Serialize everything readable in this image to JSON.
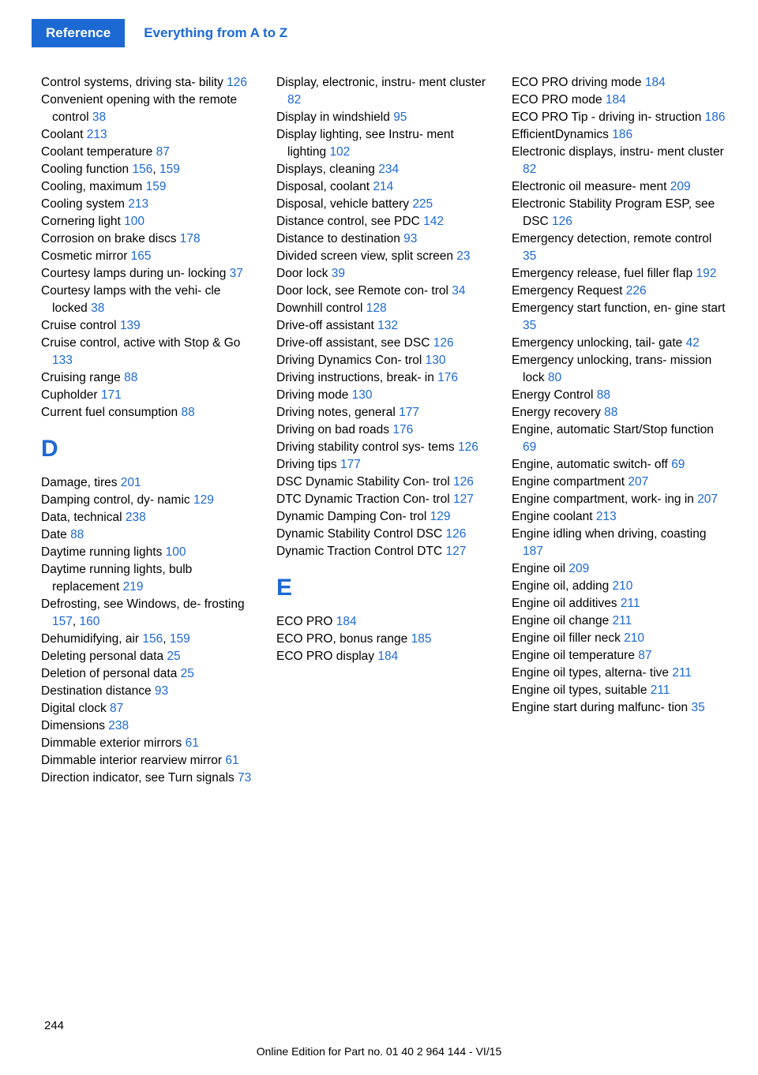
{
  "header": {
    "badge": "Reference",
    "title": "Everything from A to Z"
  },
  "columns": [
    [
      {
        "t": "entry",
        "text": "Control systems, driving sta‐ bility ",
        "pg": "126"
      },
      {
        "t": "entry",
        "text": "Convenient opening with the remote control ",
        "pg": "38"
      },
      {
        "t": "entry",
        "text": "Coolant ",
        "pg": "213"
      },
      {
        "t": "entry",
        "text": "Coolant temperature ",
        "pg": "87"
      },
      {
        "t": "entry",
        "text": "Cooling function ",
        "pg": "156",
        "sep": ", ",
        "pg2": "159"
      },
      {
        "t": "entry",
        "text": "Cooling, maximum ",
        "pg": "159"
      },
      {
        "t": "entry",
        "text": "Cooling system ",
        "pg": "213"
      },
      {
        "t": "entry",
        "text": "Cornering light ",
        "pg": "100"
      },
      {
        "t": "entry",
        "text": "Corrosion on brake discs ",
        "pg": "178"
      },
      {
        "t": "entry",
        "text": "Cosmetic mirror ",
        "pg": "165"
      },
      {
        "t": "entry",
        "text": "Courtesy lamps during un‐ locking ",
        "pg": "37"
      },
      {
        "t": "entry",
        "text": "Courtesy lamps with the vehi‐ cle locked ",
        "pg": "38"
      },
      {
        "t": "entry",
        "text": "Cruise control ",
        "pg": "139"
      },
      {
        "t": "entry",
        "text": "Cruise control, active with Stop & Go ",
        "pg": "133"
      },
      {
        "t": "entry",
        "text": "Cruising range ",
        "pg": "88"
      },
      {
        "t": "entry",
        "text": "Cupholder ",
        "pg": "171"
      },
      {
        "t": "entry",
        "text": "Current fuel consumption ",
        "pg": "88"
      },
      {
        "t": "letter",
        "text": "D"
      },
      {
        "t": "entry",
        "text": "Damage, tires ",
        "pg": "201"
      },
      {
        "t": "entry",
        "text": "Damping control, dy‐ namic ",
        "pg": "129"
      },
      {
        "t": "entry",
        "text": "Data, technical ",
        "pg": "238"
      },
      {
        "t": "entry",
        "text": "Date ",
        "pg": "88"
      },
      {
        "t": "entry",
        "text": "Daytime running lights ",
        "pg": "100"
      },
      {
        "t": "entry",
        "text": "Daytime running lights, bulb replacement ",
        "pg": "219"
      },
      {
        "t": "entry",
        "text": "Defrosting, see Windows, de‐ frosting ",
        "pg": "157",
        "sep": ", ",
        "pg2": "160"
      },
      {
        "t": "entry",
        "text": "Dehumidifying, air ",
        "pg": "156",
        "sep": ", ",
        "pg2": "159"
      },
      {
        "t": "entry",
        "text": "Deleting personal data ",
        "pg": "25"
      },
      {
        "t": "entry",
        "text": "Deletion of personal data ",
        "pg": "25"
      },
      {
        "t": "entry",
        "text": "Destination distance ",
        "pg": "93"
      },
      {
        "t": "entry",
        "text": "Digital clock ",
        "pg": "87"
      },
      {
        "t": "entry",
        "text": "Dimensions ",
        "pg": "238"
      },
      {
        "t": "entry",
        "text": "Dimmable exterior mirrors ",
        "pg": "61"
      },
      {
        "t": "entry",
        "text": "Dimmable interior rearview mirror ",
        "pg": "61"
      },
      {
        "t": "entry",
        "text": "Direction indicator, see Turn signals ",
        "pg": "73"
      }
    ],
    [
      {
        "t": "entry",
        "text": "Display, electronic, instru‐ ment cluster ",
        "pg": "82"
      },
      {
        "t": "entry",
        "text": "Display in windshield ",
        "pg": "95"
      },
      {
        "t": "entry",
        "text": "Display lighting, see Instru‐ ment lighting ",
        "pg": "102"
      },
      {
        "t": "entry",
        "text": "Displays, cleaning ",
        "pg": "234"
      },
      {
        "t": "entry",
        "text": "Disposal, coolant ",
        "pg": "214"
      },
      {
        "t": "entry",
        "text": "Disposal, vehicle battery ",
        "pg": "225"
      },
      {
        "t": "entry",
        "text": "Distance control, see PDC ",
        "pg": "142"
      },
      {
        "t": "entry",
        "text": "Distance to destination ",
        "pg": "93"
      },
      {
        "t": "entry",
        "text": "Divided screen view, split screen ",
        "pg": "23"
      },
      {
        "t": "entry",
        "text": "Door lock ",
        "pg": "39"
      },
      {
        "t": "entry",
        "text": "Door lock, see Remote con‐ trol ",
        "pg": "34"
      },
      {
        "t": "entry",
        "text": "Downhill control ",
        "pg": "128"
      },
      {
        "t": "entry",
        "text": "Drive-off assistant ",
        "pg": "132"
      },
      {
        "t": "entry",
        "text": "Drive-off assistant, see DSC ",
        "pg": "126"
      },
      {
        "t": "entry",
        "text": "Driving Dynamics Con‐ trol ",
        "pg": "130"
      },
      {
        "t": "entry",
        "text": "Driving instructions, break- in ",
        "pg": "176"
      },
      {
        "t": "entry",
        "text": "Driving mode ",
        "pg": "130"
      },
      {
        "t": "entry",
        "text": "Driving notes, general ",
        "pg": "177"
      },
      {
        "t": "entry",
        "text": "Driving on bad roads ",
        "pg": "176"
      },
      {
        "t": "entry",
        "text": "Driving stability control sys‐ tems ",
        "pg": "126"
      },
      {
        "t": "entry",
        "text": "Driving tips ",
        "pg": "177"
      },
      {
        "t": "entry",
        "text": "DSC Dynamic Stability Con‐ trol ",
        "pg": "126"
      },
      {
        "t": "entry",
        "text": "DTC Dynamic Traction Con‐ trol ",
        "pg": "127"
      },
      {
        "t": "entry",
        "text": "Dynamic Damping Con‐ trol ",
        "pg": "129"
      },
      {
        "t": "entry",
        "text": "Dynamic Stability Control DSC ",
        "pg": "126"
      },
      {
        "t": "entry",
        "text": "Dynamic Traction Control DTC ",
        "pg": "127"
      },
      {
        "t": "letter",
        "text": "E"
      },
      {
        "t": "entry",
        "text": "ECO PRO ",
        "pg": "184"
      },
      {
        "t": "entry",
        "text": "ECO PRO, bonus range ",
        "pg": "185"
      },
      {
        "t": "entry",
        "text": "ECO PRO display ",
        "pg": "184"
      }
    ],
    [
      {
        "t": "entry",
        "text": "ECO PRO driving mode ",
        "pg": "184"
      },
      {
        "t": "entry",
        "text": "ECO PRO mode ",
        "pg": "184"
      },
      {
        "t": "entry",
        "text": "ECO PRO Tip - driving in‐ struction ",
        "pg": "186"
      },
      {
        "t": "entry",
        "text": "EfficientDynamics ",
        "pg": "186"
      },
      {
        "t": "entry",
        "text": "Electronic displays, instru‐ ment cluster ",
        "pg": "82"
      },
      {
        "t": "entry",
        "text": "Electronic oil measure‐ ment ",
        "pg": "209"
      },
      {
        "t": "entry",
        "text": "Electronic Stability Program ESP, see DSC ",
        "pg": "126"
      },
      {
        "t": "entry",
        "text": "Emergency detection, remote control ",
        "pg": "35"
      },
      {
        "t": "entry",
        "text": "Emergency release, fuel filler flap ",
        "pg": "192"
      },
      {
        "t": "entry",
        "text": "Emergency Request ",
        "pg": "226"
      },
      {
        "t": "entry",
        "text": "Emergency start function, en‐ gine start ",
        "pg": "35"
      },
      {
        "t": "entry",
        "text": "Emergency unlocking, tail‐ gate ",
        "pg": "42"
      },
      {
        "t": "entry",
        "text": "Emergency unlocking, trans‐ mission lock ",
        "pg": "80"
      },
      {
        "t": "entry",
        "text": "Energy Control ",
        "pg": "88"
      },
      {
        "t": "entry",
        "text": "Energy recovery ",
        "pg": "88"
      },
      {
        "t": "entry",
        "text": "Engine, automatic Start/Stop function ",
        "pg": "69"
      },
      {
        "t": "entry",
        "text": "Engine, automatic switch- off ",
        "pg": "69"
      },
      {
        "t": "entry",
        "text": "Engine compartment ",
        "pg": "207"
      },
      {
        "t": "entry",
        "text": "Engine compartment, work‐ ing in ",
        "pg": "207"
      },
      {
        "t": "entry",
        "text": "Engine coolant ",
        "pg": "213"
      },
      {
        "t": "entry",
        "text": "Engine idling when driving, coasting ",
        "pg": "187"
      },
      {
        "t": "entry",
        "text": "Engine oil ",
        "pg": "209"
      },
      {
        "t": "entry",
        "text": "Engine oil, adding ",
        "pg": "210"
      },
      {
        "t": "entry",
        "text": "Engine oil additives ",
        "pg": "211"
      },
      {
        "t": "entry",
        "text": "Engine oil change ",
        "pg": "211"
      },
      {
        "t": "entry",
        "text": "Engine oil filler neck ",
        "pg": "210"
      },
      {
        "t": "entry",
        "text": "Engine oil temperature ",
        "pg": "87"
      },
      {
        "t": "entry",
        "text": "Engine oil types, alterna‐ tive ",
        "pg": "211"
      },
      {
        "t": "entry",
        "text": "Engine oil types, suitable ",
        "pg": "211"
      },
      {
        "t": "entry",
        "text": "Engine start during malfunc‐ tion ",
        "pg": "35"
      }
    ]
  ],
  "page_number": "244",
  "footer": "Online Edition for Part no. 01 40 2 964 144 - VI/15"
}
